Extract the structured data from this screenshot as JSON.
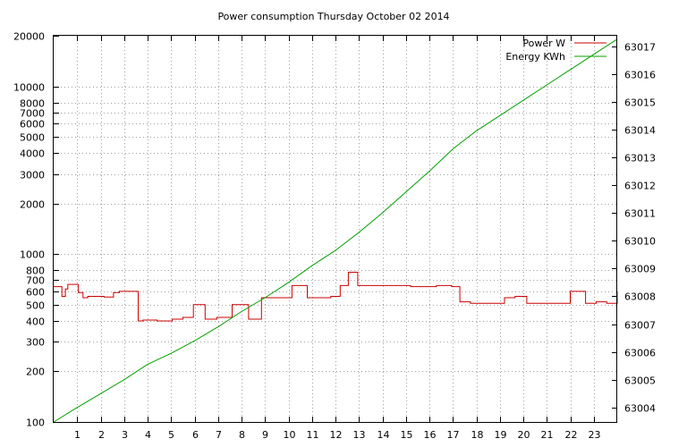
{
  "chart_data": {
    "type": "line",
    "title": "Power consumption Thursday October 02 2014",
    "xlabel": "",
    "ylabel": "",
    "y2label": "",
    "xlim": [
      0,
      24
    ],
    "x_ticks": [
      1,
      2,
      3,
      4,
      5,
      6,
      7,
      8,
      9,
      10,
      11,
      12,
      13,
      14,
      15,
      16,
      17,
      18,
      19,
      20,
      21,
      22,
      23
    ],
    "ylim": [
      100,
      20000
    ],
    "y_scale": "log",
    "y_ticks": [
      {
        "value": 100,
        "label": "100"
      },
      {
        "value": 200,
        "label": "200"
      },
      {
        "value": 300,
        "label": "300"
      },
      {
        "value": 400,
        "label": "400"
      },
      {
        "value": 500,
        "label": "500"
      },
      {
        "value": 600,
        "label": "600"
      },
      {
        "value": 700,
        "label": "700"
      },
      {
        "value": 800,
        "label": "800"
      },
      {
        "value": 1000,
        "label": "1000"
      },
      {
        "value": 2000,
        "label": "2000"
      },
      {
        "value": 3000,
        "label": "3000"
      },
      {
        "value": 4000,
        "label": "4000"
      },
      {
        "value": 5000,
        "label": "5000"
      },
      {
        "value": 6000,
        "label": "6000"
      },
      {
        "value": 7000,
        "label": "7000"
      },
      {
        "value": 8000,
        "label": "8000"
      },
      {
        "value": 10000,
        "label": "10000"
      },
      {
        "value": 20000,
        "label": "20000"
      }
    ],
    "y2lim": [
      63003.48,
      63017.37
    ],
    "y2_ticks": [
      63004,
      63005,
      63006,
      63007,
      63008,
      63009,
      63010,
      63011,
      63012,
      63013,
      63014,
      63015,
      63016,
      63017
    ],
    "grid": true,
    "legend_position": "top-right",
    "series": [
      {
        "name": "Power W",
        "axis": "y",
        "color": "#cc0000",
        "step": true,
        "x": [
          0,
          0.35,
          0.5,
          0.6,
          1.05,
          1.25,
          1.45,
          2.15,
          2.55,
          2.8,
          3.0,
          3.6,
          3.8,
          4.4,
          5.05,
          5.5,
          5.95,
          6.45,
          6.95,
          7.6,
          8.3,
          8.85,
          9.35,
          10.15,
          10.8,
          11.35,
          11.8,
          12.2,
          12.55,
          12.95,
          13.55,
          14.35,
          15.2,
          15.75,
          16.3,
          16.75,
          16.95,
          17.3,
          17.75,
          18.3,
          18.75,
          19.2,
          19.65,
          20.15,
          20.8,
          21.4,
          22.0,
          22.65,
          23.1,
          23.55,
          24.0
        ],
        "y": [
          640,
          560,
          620,
          660,
          590,
          550,
          560,
          555,
          590,
          600,
          600,
          400,
          405,
          400,
          410,
          420,
          500,
          410,
          420,
          500,
          410,
          550,
          550,
          650,
          550,
          550,
          560,
          650,
          780,
          650,
          650,
          650,
          640,
          640,
          650,
          650,
          640,
          520,
          510,
          510,
          510,
          550,
          560,
          510,
          510,
          510,
          600,
          510,
          520,
          510,
          600
        ]
      },
      {
        "name": "Energy KWh",
        "axis": "y2",
        "color": "#00a000",
        "x": [
          0,
          1,
          2,
          3,
          4,
          5,
          6,
          7,
          8,
          9,
          10,
          11,
          12,
          13,
          14,
          15,
          16,
          17,
          18,
          19,
          20,
          21,
          22,
          23,
          24
        ],
        "y": [
          63003.48,
          63004.0,
          63004.5,
          63005.0,
          63005.55,
          63005.95,
          63006.4,
          63006.9,
          63007.45,
          63007.95,
          63008.5,
          63009.1,
          63009.65,
          63010.3,
          63011.0,
          63011.75,
          63012.5,
          63013.3,
          63013.95,
          63014.5,
          63015.05,
          63015.6,
          63016.15,
          63016.7,
          63017.25
        ]
      }
    ]
  }
}
